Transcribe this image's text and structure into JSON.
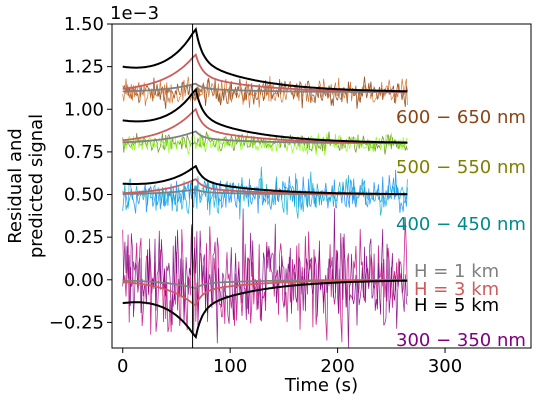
{
  "chart_data": {
    "type": "line",
    "xlabel": "Time (s)",
    "ylabel_lines": [
      "Residual and",
      "predicted signal"
    ],
    "scale_label": "1e−3",
    "xlim": [
      -10,
      380
    ],
    "ylim": [
      -0.0004,
      0.0015
    ],
    "xticks": [
      0,
      100,
      200,
      300
    ],
    "xtick_labels": [
      "0",
      "100",
      "200",
      "300"
    ],
    "yticks": [
      -0.00025,
      0.0,
      0.00025,
      0.0005,
      0.00075,
      0.001,
      0.00125,
      0.0015
    ],
    "ytick_labels": [
      "−0.25",
      "0.00",
      "0.25",
      "0.50",
      "0.75",
      "1.00",
      "1.25",
      "1.50"
    ],
    "vertical_line_x": 65,
    "model_step_x": 65,
    "model_peak_x": 68,
    "model_end_x": 265,
    "bands": [
      {
        "name": "600 − 650 nm",
        "color": "#8b4513",
        "offset": 0.0011,
        "noise_amplitude": 4e-05,
        "residual_lines": [
          {
            "color": "#8b4513",
            "x_start": 0,
            "x_end": 265
          },
          {
            "color": "#d2691e",
            "x_start": 0,
            "x_end": 265
          }
        ],
        "models": [
          {
            "label": "H = 1 km",
            "color": "#808080",
            "peak": 5e-05
          },
          {
            "label": "H = 3 km",
            "color": "#cd5c5c",
            "peak": 0.00022
          },
          {
            "label": "H = 5 km",
            "color": "#000000",
            "peak": 0.00033,
            "base": 0.00012
          }
        ]
      },
      {
        "name": "500 − 550 nm",
        "color": "#808000",
        "offset": 0.0008,
        "noise_amplitude": 3e-05,
        "residual_lines": [
          {
            "color": "#6b8e23",
            "x_start": 0,
            "x_end": 265
          },
          {
            "color": "#7fff00",
            "x_start": 0,
            "x_end": 265
          }
        ],
        "models": [
          {
            "label": "H = 1 km",
            "color": "#808080",
            "peak": 7e-05
          },
          {
            "label": "H = 3 km",
            "color": "#cd5c5c",
            "peak": 0.0002
          },
          {
            "label": "H = 5 km",
            "color": "#000000",
            "peak": 0.00028,
            "base": 0.00011
          }
        ]
      },
      {
        "name": "400 − 450 nm",
        "color": "#008b8b",
        "offset": 0.0005,
        "noise_amplitude": 6e-05,
        "residual_lines": [
          {
            "color": "#1e90ff",
            "x_start": 0,
            "x_end": 265
          },
          {
            "color": "#00aacc",
            "x_start": 0,
            "x_end": 265
          }
        ],
        "models": [
          {
            "label": "H = 1 km",
            "color": "#808080",
            "peak": 3e-05
          },
          {
            "label": "H = 3 km",
            "color": "#cd5c5c",
            "peak": 9e-05
          },
          {
            "label": "H = 5 km",
            "color": "#000000",
            "peak": 0.00015,
            "base": 5e-05
          }
        ]
      },
      {
        "name": "300 − 350 nm",
        "color": "#800080",
        "offset": 0.0,
        "noise_amplitude": 0.00016,
        "residual_lines": [
          {
            "color": "#c71585",
            "x_start": 0,
            "x_end": 265
          },
          {
            "color": "#800080",
            "x_start": 0,
            "x_end": 265
          }
        ],
        "models": [
          {
            "label": "H = 1 km",
            "color": "#808080",
            "peak": -5e-05
          },
          {
            "label": "H = 3 km",
            "color": "#cd5c5c",
            "peak": -0.00015
          },
          {
            "label": "H = 5 km",
            "color": "#000000",
            "peak": -0.0003,
            "base": -0.00011
          }
        ]
      }
    ],
    "legend": [
      {
        "label": "H = 1 km",
        "color": "#808080"
      },
      {
        "label": "H = 3 km",
        "color": "#cd5c5c"
      },
      {
        "label": "H = 5 km",
        "color": "#000000"
      }
    ]
  }
}
